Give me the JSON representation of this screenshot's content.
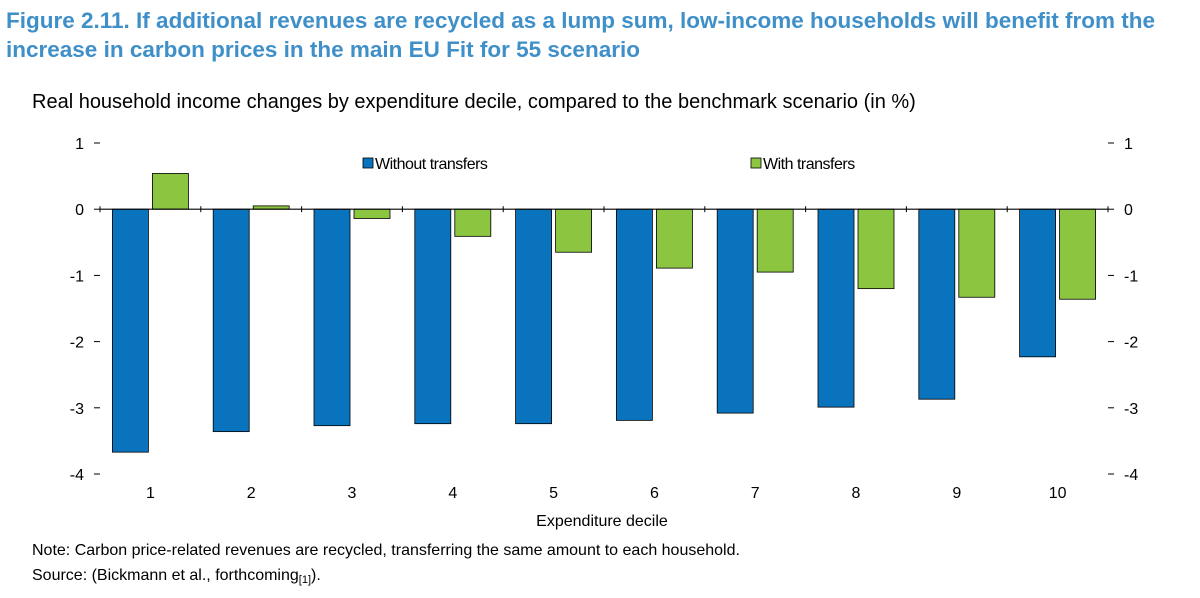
{
  "figure": {
    "title": "Figure 2.11. If additional revenues are recycled as a lump sum, low-income households will benefit from the increase in carbon prices in the main EU Fit for 55 scenario",
    "subtitle": "Real household income changes by expenditure decile, compared to the benchmark scenario (in %)"
  },
  "chart_data": {
    "type": "bar",
    "title": "Real household income changes by expenditure decile, compared to the benchmark scenario (in %)",
    "xlabel": "Expenditure decile",
    "ylabel": "",
    "categories": [
      "1",
      "2",
      "3",
      "4",
      "5",
      "6",
      "7",
      "8",
      "9",
      "10"
    ],
    "ylim": [
      -4,
      1
    ],
    "yticks": [
      1,
      0,
      -1,
      -2,
      -3,
      -4
    ],
    "ytick_labels": [
      "1",
      "0",
      "-1",
      "-2",
      "-3",
      "-4"
    ],
    "secondary_y_axis": true,
    "grid": false,
    "legend_position": "top",
    "series": [
      {
        "name": "Without transfers",
        "color": "#0a73be",
        "values": [
          -3.67,
          -3.36,
          -3.27,
          -3.24,
          -3.24,
          -3.19,
          -3.08,
          -2.99,
          -2.87,
          -2.23
        ]
      },
      {
        "name": "With transfers",
        "color": "#8cc641",
        "values": [
          0.54,
          0.05,
          -0.14,
          -0.41,
          -0.65,
          -0.89,
          -0.95,
          -1.2,
          -1.33,
          -1.36
        ]
      }
    ]
  },
  "footer": {
    "note": "Note: Carbon price-related revenues are recycled, transferring the same amount to each household.",
    "source_prefix": "Source: (Bickmann et al., forthcoming",
    "source_ref": "[1]",
    "source_suffix": ")."
  }
}
